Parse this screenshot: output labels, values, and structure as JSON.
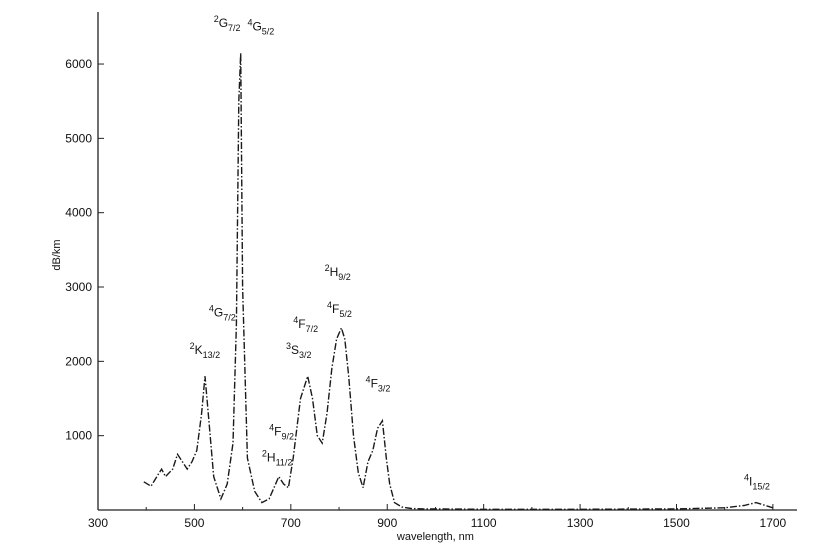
{
  "chart_data": {
    "type": "line",
    "title": "",
    "xlabel": "wavelength, nm",
    "ylabel": "dB/km",
    "xlim": [
      300,
      1750
    ],
    "ylim": [
      0,
      6700
    ],
    "x_ticks": [
      300,
      500,
      700,
      900,
      1100,
      1300,
      1500,
      1700
    ],
    "y_ticks": [
      1000,
      2000,
      3000,
      4000,
      5000,
      6000
    ],
    "grid": false,
    "legend": "none",
    "series": [
      {
        "x": [
          395,
          410,
          425,
          432,
          440,
          455,
          465,
          475,
          485,
          495,
          505,
          515,
          522,
          530,
          540,
          555,
          568,
          580,
          587,
          592,
          596,
          600,
          610,
          625,
          640,
          655,
          665,
          675,
          685,
          695,
          705,
          720,
          735,
          745,
          755,
          765,
          775,
          785,
          795,
          805,
          812,
          820,
          830,
          840,
          850,
          860,
          870,
          880,
          890,
          898,
          905,
          915,
          930,
          950,
          975,
          1000,
          1100,
          1300,
          1500,
          1600,
          1640,
          1665,
          1680,
          1700
        ],
        "y": [
          380,
          320,
          480,
          550,
          450,
          550,
          750,
          650,
          550,
          650,
          800,
          1300,
          1800,
          1200,
          450,
          150,
          350,
          900,
          2500,
          5500,
          6150,
          3000,
          700,
          250,
          100,
          150,
          300,
          450,
          350,
          300,
          700,
          1500,
          1800,
          1500,
          1000,
          900,
          1300,
          1900,
          2300,
          2450,
          2300,
          1800,
          1000,
          500,
          300,
          650,
          800,
          1100,
          1200,
          700,
          350,
          100,
          40,
          20,
          15,
          15,
          10,
          10,
          15,
          30,
          60,
          100,
          70,
          30
        ]
      }
    ],
    "annotations": [
      {
        "sup": "2",
        "base": "G",
        "sub": "7/2",
        "x": 540,
        "y": 6500
      },
      {
        "sup": "4",
        "base": "G",
        "sub": "5/2",
        "x": 610,
        "y": 6450
      },
      {
        "sup": "4",
        "base": "G",
        "sub": "7/2",
        "x": 530,
        "y": 2600
      },
      {
        "sup": "2",
        "base": "K",
        "sub": "13/2",
        "x": 490,
        "y": 2100
      },
      {
        "sup": "2",
        "base": "H",
        "sub": "11/2",
        "x": 640,
        "y": 650
      },
      {
        "sup": "4",
        "base": "F",
        "sub": "9/2",
        "x": 655,
        "y": 1000
      },
      {
        "sup": "4",
        "base": "F",
        "sub": "7/2",
        "x": 705,
        "y": 2450
      },
      {
        "sup": "3",
        "base": "S",
        "sub": "3/2",
        "x": 690,
        "y": 2100
      },
      {
        "sup": "2",
        "base": "H",
        "sub": "9/2",
        "x": 770,
        "y": 3150
      },
      {
        "sup": "4",
        "base": "F",
        "sub": "5/2",
        "x": 775,
        "y": 2650
      },
      {
        "sup": "4",
        "base": "F",
        "sub": "3/2",
        "x": 855,
        "y": 1650
      },
      {
        "sup": "4",
        "base": "I",
        "sub": "15/2",
        "x": 1640,
        "y": 330
      }
    ]
  }
}
